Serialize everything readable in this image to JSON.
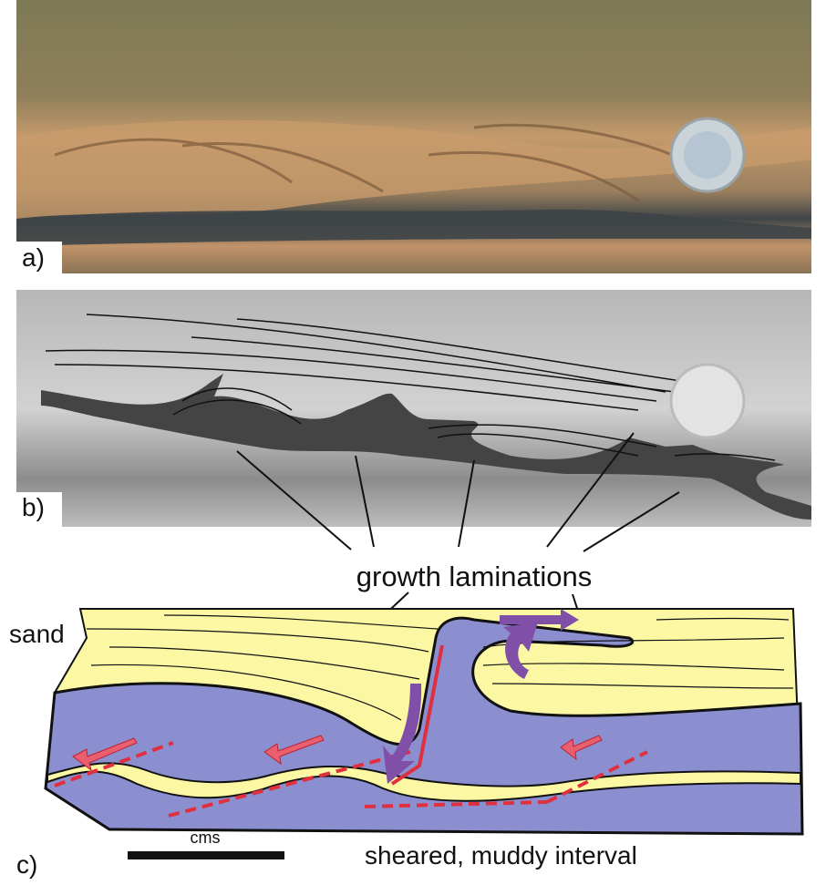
{
  "panels": {
    "a": "a)",
    "b": "b)",
    "c": "c)"
  },
  "annotations": {
    "growth": "growth laminations",
    "sand": "sand",
    "sheared": "sheared, muddy interval",
    "scale": "cms"
  }
}
